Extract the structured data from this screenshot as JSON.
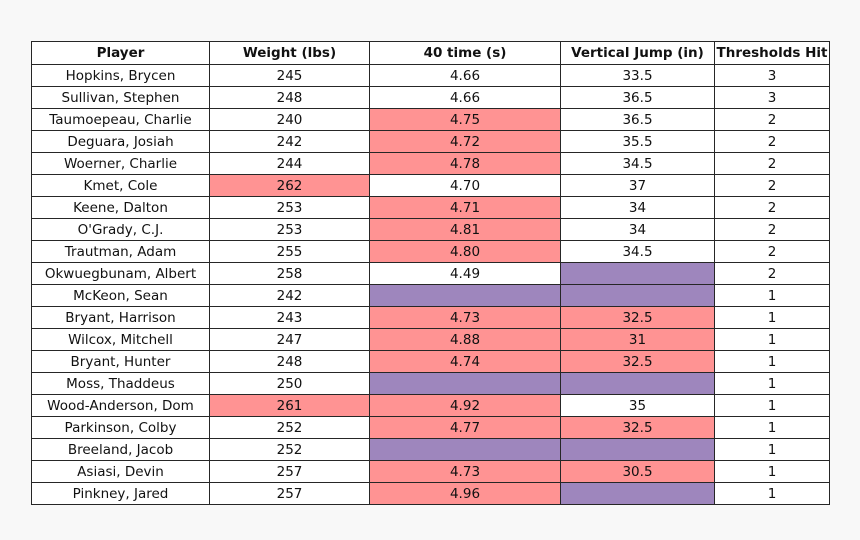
{
  "table": {
    "headers": [
      "Player",
      "Weight (lbs)",
      "40 time (s)",
      "Vertical Jump (in)",
      "Thresholds Hit"
    ],
    "colors": {
      "red": "#ff9393",
      "purple": "#9e86bd",
      "none": "#ffffff"
    },
    "rows": [
      {
        "player": "Hopkins, Brycen",
        "weight": "245",
        "forty": "4.66",
        "vertical": "33.5",
        "thresholds": "3",
        "weight_fill": "none",
        "forty_fill": "none",
        "vertical_fill": "none"
      },
      {
        "player": "Sullivan, Stephen",
        "weight": "248",
        "forty": "4.66",
        "vertical": "36.5",
        "thresholds": "3",
        "weight_fill": "none",
        "forty_fill": "none",
        "vertical_fill": "none"
      },
      {
        "player": "Taumoepeau, Charlie",
        "weight": "240",
        "forty": "4.75",
        "vertical": "36.5",
        "thresholds": "2",
        "weight_fill": "none",
        "forty_fill": "red",
        "vertical_fill": "none"
      },
      {
        "player": "Deguara, Josiah",
        "weight": "242",
        "forty": "4.72",
        "vertical": "35.5",
        "thresholds": "2",
        "weight_fill": "none",
        "forty_fill": "red",
        "vertical_fill": "none"
      },
      {
        "player": "Woerner, Charlie",
        "weight": "244",
        "forty": "4.78",
        "vertical": "34.5",
        "thresholds": "2",
        "weight_fill": "none",
        "forty_fill": "red",
        "vertical_fill": "none"
      },
      {
        "player": "Kmet, Cole",
        "weight": "262",
        "forty": "4.70",
        "vertical": "37",
        "thresholds": "2",
        "weight_fill": "red",
        "forty_fill": "none",
        "vertical_fill": "none"
      },
      {
        "player": "Keene, Dalton",
        "weight": "253",
        "forty": "4.71",
        "vertical": "34",
        "thresholds": "2",
        "weight_fill": "none",
        "forty_fill": "red",
        "vertical_fill": "none"
      },
      {
        "player": "O'Grady, C.J.",
        "weight": "253",
        "forty": "4.81",
        "vertical": "34",
        "thresholds": "2",
        "weight_fill": "none",
        "forty_fill": "red",
        "vertical_fill": "none"
      },
      {
        "player": "Trautman, Adam",
        "weight": "255",
        "forty": "4.80",
        "vertical": "34.5",
        "thresholds": "2",
        "weight_fill": "none",
        "forty_fill": "red",
        "vertical_fill": "none"
      },
      {
        "player": "Okwuegbunam, Albert",
        "weight": "258",
        "forty": "4.49",
        "vertical": "",
        "thresholds": "2",
        "weight_fill": "none",
        "forty_fill": "none",
        "vertical_fill": "purple"
      },
      {
        "player": "McKeon, Sean",
        "weight": "242",
        "forty": "",
        "vertical": "",
        "thresholds": "1",
        "weight_fill": "none",
        "forty_fill": "purple",
        "vertical_fill": "purple"
      },
      {
        "player": "Bryant, Harrison",
        "weight": "243",
        "forty": "4.73",
        "vertical": "32.5",
        "thresholds": "1",
        "weight_fill": "none",
        "forty_fill": "red",
        "vertical_fill": "red"
      },
      {
        "player": "Wilcox, Mitchell",
        "weight": "247",
        "forty": "4.88",
        "vertical": "31",
        "thresholds": "1",
        "weight_fill": "none",
        "forty_fill": "red",
        "vertical_fill": "red"
      },
      {
        "player": "Bryant, Hunter",
        "weight": "248",
        "forty": "4.74",
        "vertical": "32.5",
        "thresholds": "1",
        "weight_fill": "none",
        "forty_fill": "red",
        "vertical_fill": "red"
      },
      {
        "player": "Moss, Thaddeus",
        "weight": "250",
        "forty": "",
        "vertical": "",
        "thresholds": "1",
        "weight_fill": "none",
        "forty_fill": "purple",
        "vertical_fill": "purple"
      },
      {
        "player": "Wood-Anderson, Dom",
        "weight": "261",
        "forty": "4.92",
        "vertical": "35",
        "thresholds": "1",
        "weight_fill": "red",
        "forty_fill": "red",
        "vertical_fill": "none"
      },
      {
        "player": "Parkinson, Colby",
        "weight": "252",
        "forty": "4.77",
        "vertical": "32.5",
        "thresholds": "1",
        "weight_fill": "none",
        "forty_fill": "red",
        "vertical_fill": "red"
      },
      {
        "player": "Breeland, Jacob",
        "weight": "252",
        "forty": "",
        "vertical": "",
        "thresholds": "1",
        "weight_fill": "none",
        "forty_fill": "purple",
        "vertical_fill": "purple"
      },
      {
        "player": "Asiasi, Devin",
        "weight": "257",
        "forty": "4.73",
        "vertical": "30.5",
        "thresholds": "1",
        "weight_fill": "none",
        "forty_fill": "red",
        "vertical_fill": "red"
      },
      {
        "player": "Pinkney, Jared",
        "weight": "257",
        "forty": "4.96",
        "vertical": "",
        "thresholds": "1",
        "weight_fill": "none",
        "forty_fill": "red",
        "vertical_fill": "purple"
      }
    ]
  }
}
